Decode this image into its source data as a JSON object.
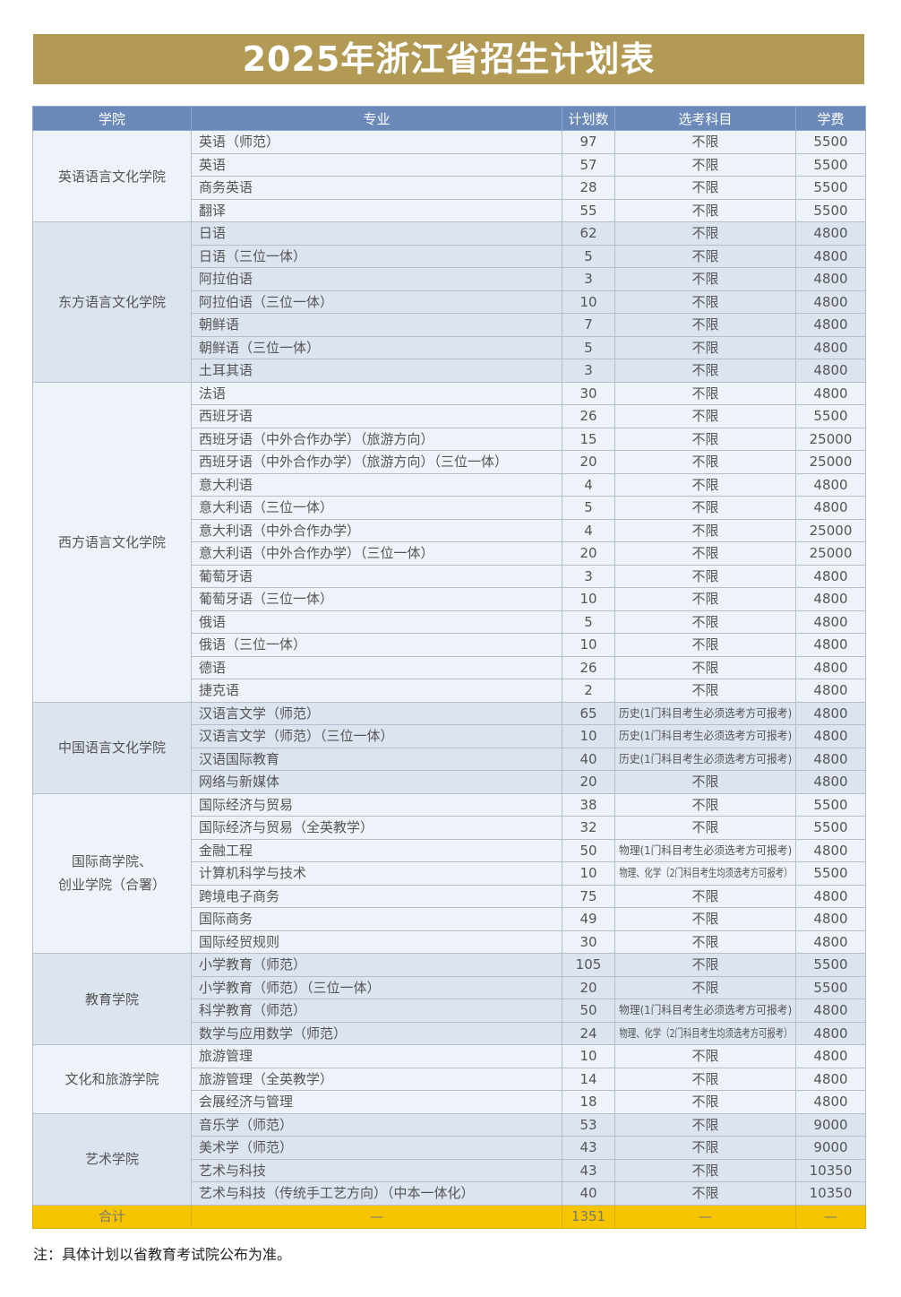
{
  "title": "2025年浙江省招生计划表",
  "headers": [
    "学院",
    "专业",
    "计划数",
    "选考科目",
    "学费"
  ],
  "colors": {
    "title_bg": "#b29a55",
    "header_bg": "#6a89b9",
    "row_light": "#eef2f9",
    "row_dark": "#dce4ef",
    "total_bg": "#f6c500"
  },
  "groups": [
    {
      "college": "英语语言文化学院",
      "rows": [
        [
          "英语（师范）",
          "97",
          "不限",
          "5500"
        ],
        [
          "英语",
          "57",
          "不限",
          "5500"
        ],
        [
          "商务英语",
          "28",
          "不限",
          "5500"
        ],
        [
          "翻译",
          "55",
          "不限",
          "5500"
        ]
      ]
    },
    {
      "college": "东方语言文化学院",
      "rows": [
        [
          "日语",
          "62",
          "不限",
          "4800"
        ],
        [
          "日语（三位一体）",
          "5",
          "不限",
          "4800"
        ],
        [
          "阿拉伯语",
          "3",
          "不限",
          "4800"
        ],
        [
          "阿拉伯语（三位一体）",
          "10",
          "不限",
          "4800"
        ],
        [
          "朝鲜语",
          "7",
          "不限",
          "4800"
        ],
        [
          "朝鲜语（三位一体）",
          "5",
          "不限",
          "4800"
        ],
        [
          "土耳其语",
          "3",
          "不限",
          "4800"
        ]
      ]
    },
    {
      "college": "西方语言文化学院",
      "rows": [
        [
          "法语",
          "30",
          "不限",
          "4800"
        ],
        [
          "西班牙语",
          "26",
          "不限",
          "5500"
        ],
        [
          "西班牙语（中外合作办学）（旅游方向）",
          "15",
          "不限",
          "25000"
        ],
        [
          "西班牙语（中外合作办学）（旅游方向）（三位一体）",
          "20",
          "不限",
          "25000"
        ],
        [
          "意大利语",
          "4",
          "不限",
          "4800"
        ],
        [
          "意大利语（三位一体）",
          "5",
          "不限",
          "4800"
        ],
        [
          "意大利语（中外合作办学）",
          "4",
          "不限",
          "25000"
        ],
        [
          "意大利语（中外合作办学）（三位一体）",
          "20",
          "不限",
          "25000"
        ],
        [
          "葡萄牙语",
          "3",
          "不限",
          "4800"
        ],
        [
          "葡萄牙语（三位一体）",
          "10",
          "不限",
          "4800"
        ],
        [
          "俄语",
          "5",
          "不限",
          "4800"
        ],
        [
          "俄语（三位一体）",
          "10",
          "不限",
          "4800"
        ],
        [
          "德语",
          "26",
          "不限",
          "4800"
        ],
        [
          "捷克语",
          "2",
          "不限",
          "4800"
        ]
      ]
    },
    {
      "college": "中国语言文化学院",
      "rows": [
        [
          "汉语言文学（师范）",
          "65",
          "历史(1门科目考生必须选考方可报考)",
          "4800"
        ],
        [
          "汉语言文学（师范）（三位一体）",
          "10",
          "历史(1门科目考生必须选考方可报考)",
          "4800"
        ],
        [
          "汉语国际教育",
          "40",
          "历史(1门科目考生必须选考方可报考)",
          "4800"
        ],
        [
          "网络与新媒体",
          "20",
          "不限",
          "4800"
        ]
      ]
    },
    {
      "college": "国际商学院、\n创业学院（合署）",
      "rows": [
        [
          "国际经济与贸易",
          "38",
          "不限",
          "5500"
        ],
        [
          "国际经济与贸易（全英教学）",
          "32",
          "不限",
          "5500"
        ],
        [
          "金融工程",
          "50",
          "物理(1门科目考生必须选考方可报考)",
          "4800"
        ],
        [
          "计算机科学与技术",
          "10",
          "物理、化学（2门科目考生均须选考方可报考）",
          "5500"
        ],
        [
          "跨境电子商务",
          "75",
          "不限",
          "4800"
        ],
        [
          "国际商务",
          "49",
          "不限",
          "4800"
        ],
        [
          "国际经贸规则",
          "30",
          "不限",
          "4800"
        ]
      ]
    },
    {
      "college": "教育学院",
      "rows": [
        [
          "小学教育（师范）",
          "105",
          "不限",
          "5500"
        ],
        [
          "小学教育（师范）（三位一体）",
          "20",
          "不限",
          "5500"
        ],
        [
          "科学教育（师范）",
          "50",
          "物理(1门科目考生必须选考方可报考)",
          "4800"
        ],
        [
          "数学与应用数学（师范）",
          "24",
          "物理、化学（2门科目考生均须选考方可报考）",
          "4800"
        ]
      ]
    },
    {
      "college": "文化和旅游学院",
      "rows": [
        [
          "旅游管理",
          "10",
          "不限",
          "4800"
        ],
        [
          "旅游管理（全英教学）",
          "14",
          "不限",
          "4800"
        ],
        [
          "会展经济与管理",
          "18",
          "不限",
          "4800"
        ]
      ]
    },
    {
      "college": "艺术学院",
      "rows": [
        [
          "音乐学（师范）",
          "53",
          "不限",
          "9000"
        ],
        [
          "美术学（师范）",
          "43",
          "不限",
          "9000"
        ],
        [
          "艺术与科技",
          "43",
          "不限",
          "10350"
        ],
        [
          "艺术与科技（传统手工艺方向）（中本一体化）",
          "40",
          "不限",
          "10350"
        ]
      ]
    }
  ],
  "total": [
    "合计",
    "—",
    "1351",
    "—",
    "—"
  ],
  "note": "注：具体计划以省教育考试院公布为准。"
}
